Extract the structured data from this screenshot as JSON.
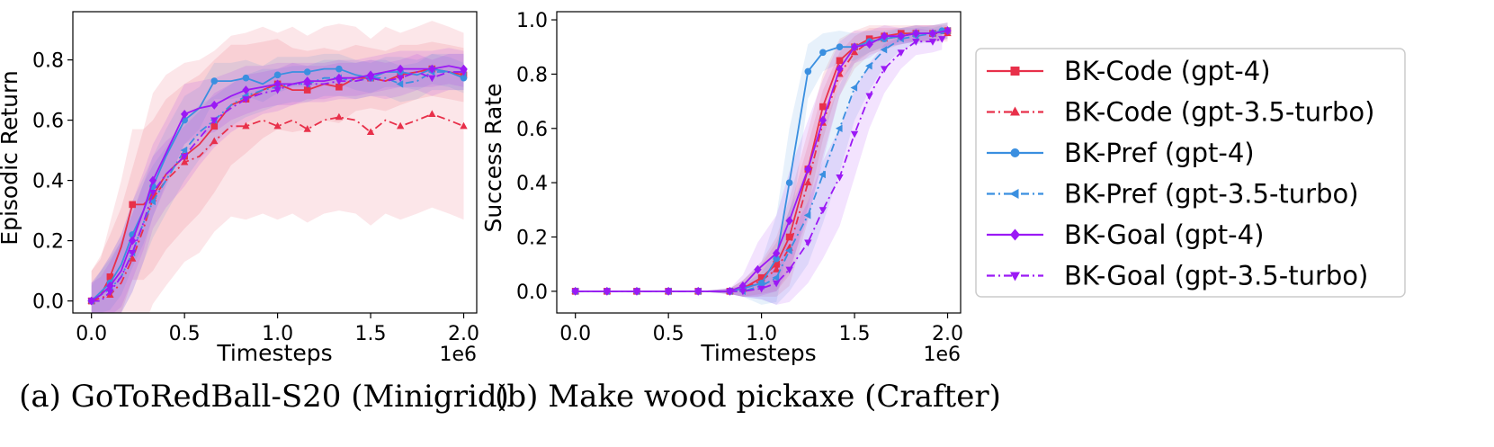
{
  "legend": {
    "entries": [
      {
        "label": "BK-Code (gpt-4)",
        "color": "#e8304a",
        "dash": "solid",
        "marker": "square"
      },
      {
        "label": "BK-Code (gpt-3.5-turbo)",
        "color": "#e8304a",
        "dash": "dashdot",
        "marker": "triangle-up"
      },
      {
        "label": "BK-Pref (gpt-4)",
        "color": "#3a8fe0",
        "dash": "solid",
        "marker": "circle"
      },
      {
        "label": "BK-Pref (gpt-3.5-turbo)",
        "color": "#3a8fe0",
        "dash": "dashdot",
        "marker": "triangle-left"
      },
      {
        "label": "BK-Goal (gpt-4)",
        "color": "#9b19f5",
        "dash": "solid",
        "marker": "diamond"
      },
      {
        "label": "BK-Goal (gpt-3.5-turbo)",
        "color": "#9b19f5",
        "dash": "dashdot",
        "marker": "triangle-down"
      }
    ]
  },
  "chart_data": [
    {
      "type": "line",
      "caption": "(a) GoToRedBall-S20 (Minigrid)",
      "xlabel": "Timesteps",
      "ylabel": "Episodic Return",
      "x_offset_label": "1e6",
      "xlim": [
        -0.1,
        2.07
      ],
      "ylim": [
        -0.04,
        0.96
      ],
      "xticks": [
        0.0,
        0.5,
        1.0,
        1.5,
        2.0
      ],
      "xtick_labels": [
        "0.0",
        "0.5",
        "1.0",
        "1.5",
        "2.0"
      ],
      "yticks": [
        0.0,
        0.2,
        0.4,
        0.6,
        0.8
      ],
      "ytick_labels": [
        "0.0",
        "0.2",
        "0.4",
        "0.6",
        "0.8"
      ],
      "series": [
        {
          "name": "BK-Code (gpt-4)",
          "x": [
            0.0,
            0.05,
            0.1,
            0.16,
            0.22,
            0.28,
            0.33,
            0.4,
            0.5,
            0.58,
            0.66,
            0.75,
            0.83,
            0.92,
            1.0,
            1.08,
            1.16,
            1.25,
            1.33,
            1.42,
            1.5,
            1.58,
            1.66,
            1.75,
            1.83,
            1.92,
            2.0
          ],
          "y": [
            0.0,
            0.02,
            0.08,
            0.18,
            0.32,
            0.32,
            0.35,
            0.42,
            0.48,
            0.52,
            0.58,
            0.65,
            0.67,
            0.7,
            0.72,
            0.7,
            0.7,
            0.72,
            0.71,
            0.74,
            0.74,
            0.73,
            0.75,
            0.76,
            0.77,
            0.76,
            0.75
          ],
          "band": [
            0.1,
            0.12,
            0.18,
            0.22,
            0.25,
            0.25,
            0.25,
            0.25,
            0.24,
            0.23,
            0.22,
            0.2,
            0.18,
            0.16,
            0.15,
            0.14,
            0.13,
            0.12,
            0.12,
            0.11,
            0.1,
            0.1,
            0.1,
            0.09,
            0.09,
            0.09,
            0.09
          ]
        },
        {
          "name": "BK-Code (gpt-3.5-turbo)",
          "x": [
            0.0,
            0.05,
            0.1,
            0.16,
            0.22,
            0.28,
            0.33,
            0.4,
            0.5,
            0.58,
            0.66,
            0.75,
            0.83,
            0.92,
            1.0,
            1.08,
            1.16,
            1.25,
            1.33,
            1.42,
            1.5,
            1.58,
            1.66,
            1.75,
            1.83,
            1.92,
            2.0
          ],
          "y": [
            0.0,
            0.01,
            0.02,
            0.06,
            0.14,
            0.24,
            0.34,
            0.4,
            0.46,
            0.48,
            0.53,
            0.58,
            0.58,
            0.6,
            0.58,
            0.6,
            0.57,
            0.6,
            0.61,
            0.6,
            0.56,
            0.6,
            0.58,
            0.6,
            0.62,
            0.6,
            0.58
          ],
          "band": [
            0.1,
            0.14,
            0.2,
            0.25,
            0.3,
            0.33,
            0.35,
            0.35,
            0.33,
            0.32,
            0.3,
            0.3,
            0.31,
            0.31,
            0.31,
            0.31,
            0.31,
            0.31,
            0.31,
            0.31,
            0.31,
            0.31,
            0.31,
            0.31,
            0.31,
            0.31,
            0.31
          ]
        },
        {
          "name": "BK-Pref (gpt-4)",
          "x": [
            0.0,
            0.05,
            0.1,
            0.16,
            0.22,
            0.28,
            0.33,
            0.4,
            0.5,
            0.58,
            0.66,
            0.75,
            0.83,
            0.92,
            1.0,
            1.08,
            1.16,
            1.25,
            1.33,
            1.42,
            1.5,
            1.58,
            1.66,
            1.75,
            1.83,
            1.92,
            2.0
          ],
          "y": [
            0.0,
            0.03,
            0.06,
            0.12,
            0.22,
            0.3,
            0.38,
            0.48,
            0.6,
            0.64,
            0.73,
            0.73,
            0.74,
            0.72,
            0.75,
            0.76,
            0.76,
            0.77,
            0.77,
            0.75,
            0.74,
            0.76,
            0.76,
            0.75,
            0.77,
            0.76,
            0.74
          ],
          "band": [
            0.05,
            0.07,
            0.09,
            0.1,
            0.11,
            0.11,
            0.1,
            0.09,
            0.08,
            0.07,
            0.06,
            0.06,
            0.06,
            0.06,
            0.06,
            0.05,
            0.05,
            0.05,
            0.05,
            0.05,
            0.05,
            0.05,
            0.05,
            0.05,
            0.05,
            0.05,
            0.05
          ]
        },
        {
          "name": "BK-Pref (gpt-3.5-turbo)",
          "x": [
            0.0,
            0.05,
            0.1,
            0.16,
            0.22,
            0.28,
            0.33,
            0.4,
            0.5,
            0.58,
            0.66,
            0.75,
            0.83,
            0.92,
            1.0,
            1.08,
            1.16,
            1.25,
            1.33,
            1.42,
            1.5,
            1.58,
            1.66,
            1.75,
            1.83,
            1.92,
            2.0
          ],
          "y": [
            0.0,
            0.02,
            0.04,
            0.08,
            0.16,
            0.26,
            0.33,
            0.4,
            0.5,
            0.56,
            0.6,
            0.65,
            0.68,
            0.7,
            0.71,
            0.72,
            0.72,
            0.74,
            0.74,
            0.73,
            0.74,
            0.74,
            0.72,
            0.73,
            0.76,
            0.76,
            0.76
          ],
          "band": [
            0.06,
            0.08,
            0.1,
            0.12,
            0.13,
            0.13,
            0.12,
            0.11,
            0.1,
            0.09,
            0.08,
            0.07,
            0.07,
            0.07,
            0.06,
            0.06,
            0.06,
            0.06,
            0.06,
            0.06,
            0.06,
            0.06,
            0.06,
            0.06,
            0.06,
            0.06,
            0.06
          ]
        },
        {
          "name": "BK-Goal (gpt-4)",
          "x": [
            0.0,
            0.05,
            0.1,
            0.16,
            0.22,
            0.28,
            0.33,
            0.4,
            0.5,
            0.58,
            0.66,
            0.75,
            0.83,
            0.92,
            1.0,
            1.08,
            1.16,
            1.25,
            1.33,
            1.42,
            1.5,
            1.58,
            1.66,
            1.75,
            1.83,
            1.92,
            2.0
          ],
          "y": [
            0.0,
            0.02,
            0.05,
            0.1,
            0.2,
            0.3,
            0.4,
            0.49,
            0.62,
            0.64,
            0.65,
            0.68,
            0.7,
            0.71,
            0.72,
            0.72,
            0.73,
            0.73,
            0.74,
            0.74,
            0.75,
            0.76,
            0.77,
            0.77,
            0.77,
            0.78,
            0.77
          ],
          "band": [
            0.06,
            0.08,
            0.1,
            0.12,
            0.13,
            0.13,
            0.12,
            0.11,
            0.1,
            0.09,
            0.09,
            0.08,
            0.08,
            0.07,
            0.07,
            0.07,
            0.06,
            0.06,
            0.06,
            0.06,
            0.06,
            0.06,
            0.06,
            0.06,
            0.06,
            0.06,
            0.06
          ]
        },
        {
          "name": "BK-Goal (gpt-3.5-turbo)",
          "x": [
            0.0,
            0.05,
            0.1,
            0.16,
            0.22,
            0.28,
            0.33,
            0.4,
            0.5,
            0.58,
            0.66,
            0.75,
            0.83,
            0.92,
            1.0,
            1.08,
            1.16,
            1.25,
            1.33,
            1.42,
            1.5,
            1.58,
            1.66,
            1.75,
            1.83,
            1.92,
            2.0
          ],
          "y": [
            0.0,
            0.0,
            0.03,
            0.08,
            0.16,
            0.26,
            0.36,
            0.42,
            0.48,
            0.54,
            0.6,
            0.64,
            0.67,
            0.69,
            0.7,
            0.72,
            0.72,
            0.72,
            0.73,
            0.73,
            0.74,
            0.73,
            0.74,
            0.76,
            0.74,
            0.76,
            0.76
          ],
          "band": [
            0.06,
            0.08,
            0.1,
            0.12,
            0.13,
            0.13,
            0.12,
            0.11,
            0.1,
            0.09,
            0.09,
            0.08,
            0.08,
            0.07,
            0.07,
            0.07,
            0.06,
            0.06,
            0.06,
            0.06,
            0.06,
            0.06,
            0.06,
            0.06,
            0.06,
            0.06,
            0.06
          ]
        }
      ]
    },
    {
      "type": "line",
      "caption": "(b) Make wood pickaxe (Crafter)",
      "xlabel": "Timesteps",
      "ylabel": "Success Rate",
      "x_offset_label": "1e6",
      "xlim": [
        -0.1,
        2.07
      ],
      "ylim": [
        -0.08,
        1.03
      ],
      "xticks": [
        0.0,
        0.5,
        1.0,
        1.5,
        2.0
      ],
      "xtick_labels": [
        "0.0",
        "0.5",
        "1.0",
        "1.5",
        "2.0"
      ],
      "yticks": [
        0.0,
        0.2,
        0.4,
        0.6,
        0.8,
        1.0
      ],
      "ytick_labels": [
        "0.0",
        "0.2",
        "0.4",
        "0.6",
        "0.8",
        "1.0"
      ],
      "series": [
        {
          "name": "BK-Code (gpt-4)",
          "x": [
            0.0,
            0.17,
            0.33,
            0.5,
            0.66,
            0.83,
            0.9,
            1.0,
            1.08,
            1.15,
            1.25,
            1.33,
            1.42,
            1.5,
            1.58,
            1.66,
            1.75,
            1.83,
            1.92,
            2.0
          ],
          "y": [
            0.0,
            0.0,
            0.0,
            0.0,
            0.0,
            0.0,
            0.01,
            0.05,
            0.1,
            0.2,
            0.45,
            0.68,
            0.85,
            0.9,
            0.93,
            0.94,
            0.95,
            0.95,
            0.95,
            0.96
          ],
          "band": [
            0,
            0,
            0,
            0,
            0,
            0.01,
            0.03,
            0.06,
            0.1,
            0.14,
            0.14,
            0.12,
            0.08,
            0.06,
            0.05,
            0.04,
            0.03,
            0.03,
            0.03,
            0.03
          ]
        },
        {
          "name": "BK-Code (gpt-3.5-turbo)",
          "x": [
            0.0,
            0.17,
            0.33,
            0.5,
            0.66,
            0.83,
            0.9,
            1.0,
            1.08,
            1.15,
            1.25,
            1.33,
            1.42,
            1.5,
            1.58,
            1.66,
            1.75,
            1.83,
            1.92,
            2.0
          ],
          "y": [
            0.0,
            0.0,
            0.0,
            0.0,
            0.0,
            0.0,
            0.01,
            0.04,
            0.08,
            0.16,
            0.4,
            0.62,
            0.8,
            0.88,
            0.92,
            0.93,
            0.94,
            0.95,
            0.95,
            0.95
          ],
          "band": [
            0,
            0,
            0,
            0,
            0,
            0.01,
            0.03,
            0.06,
            0.1,
            0.14,
            0.14,
            0.12,
            0.08,
            0.06,
            0.05,
            0.04,
            0.03,
            0.03,
            0.03,
            0.03
          ]
        },
        {
          "name": "BK-Pref (gpt-4)",
          "x": [
            0.0,
            0.17,
            0.33,
            0.5,
            0.66,
            0.83,
            0.9,
            1.0,
            1.08,
            1.15,
            1.25,
            1.33,
            1.42,
            1.5,
            1.58,
            1.66,
            1.75,
            1.83,
            1.92,
            1.97
          ],
          "y": [
            0.0,
            0.0,
            0.0,
            0.0,
            0.0,
            0.0,
            0.01,
            0.03,
            0.12,
            0.4,
            0.81,
            0.88,
            0.9,
            0.9,
            0.92,
            0.93,
            0.94,
            0.95,
            0.95,
            0.96
          ],
          "band": [
            0,
            0,
            0,
            0,
            0,
            0.01,
            0.03,
            0.08,
            0.16,
            0.2,
            0.1,
            0.07,
            0.06,
            0.05,
            0.04,
            0.03,
            0.03,
            0.03,
            0.02,
            0.02
          ]
        },
        {
          "name": "BK-Pref (gpt-3.5-turbo)",
          "x": [
            0.0,
            0.17,
            0.33,
            0.5,
            0.66,
            0.83,
            0.9,
            1.0,
            1.08,
            1.15,
            1.25,
            1.33,
            1.42,
            1.5,
            1.58,
            1.66,
            1.75,
            1.83,
            1.92,
            2.0
          ],
          "y": [
            0.0,
            0.0,
            0.0,
            0.0,
            0.0,
            0.0,
            0.0,
            0.02,
            0.05,
            0.15,
            0.28,
            0.43,
            0.6,
            0.75,
            0.83,
            0.89,
            0.93,
            0.94,
            0.95,
            0.96
          ],
          "band": [
            0,
            0,
            0,
            0,
            0,
            0.01,
            0.02,
            0.05,
            0.1,
            0.15,
            0.18,
            0.18,
            0.16,
            0.12,
            0.09,
            0.06,
            0.04,
            0.03,
            0.03,
            0.03
          ]
        },
        {
          "name": "BK-Goal (gpt-4)",
          "x": [
            0.0,
            0.17,
            0.33,
            0.5,
            0.66,
            0.83,
            0.9,
            0.98,
            1.08,
            1.15,
            1.25,
            1.33,
            1.42,
            1.5,
            1.58,
            1.66,
            1.75,
            1.83,
            1.92,
            2.0
          ],
          "y": [
            0.0,
            0.0,
            0.0,
            0.0,
            0.0,
            0.0,
            0.02,
            0.08,
            0.14,
            0.26,
            0.45,
            0.63,
            0.82,
            0.9,
            0.91,
            0.94,
            0.94,
            0.95,
            0.95,
            0.96
          ],
          "band": [
            0,
            0,
            0,
            0,
            0,
            0.01,
            0.04,
            0.1,
            0.14,
            0.18,
            0.18,
            0.15,
            0.1,
            0.06,
            0.05,
            0.04,
            0.03,
            0.03,
            0.03,
            0.03
          ]
        },
        {
          "name": "BK-Goal (gpt-3.5-turbo)",
          "x": [
            0.0,
            0.17,
            0.33,
            0.5,
            0.66,
            0.83,
            0.9,
            1.0,
            1.08,
            1.15,
            1.25,
            1.33,
            1.42,
            1.5,
            1.58,
            1.66,
            1.75,
            1.83,
            1.92,
            1.97
          ],
          "y": [
            0.0,
            0.0,
            0.0,
            0.0,
            0.0,
            0.0,
            0.0,
            0.01,
            0.03,
            0.08,
            0.18,
            0.3,
            0.42,
            0.58,
            0.72,
            0.82,
            0.88,
            0.92,
            0.92,
            0.93
          ],
          "band": [
            0,
            0,
            0,
            0,
            0,
            0.01,
            0.02,
            0.04,
            0.08,
            0.12,
            0.15,
            0.18,
            0.18,
            0.16,
            0.12,
            0.09,
            0.06,
            0.05,
            0.04,
            0.04
          ]
        }
      ]
    }
  ]
}
